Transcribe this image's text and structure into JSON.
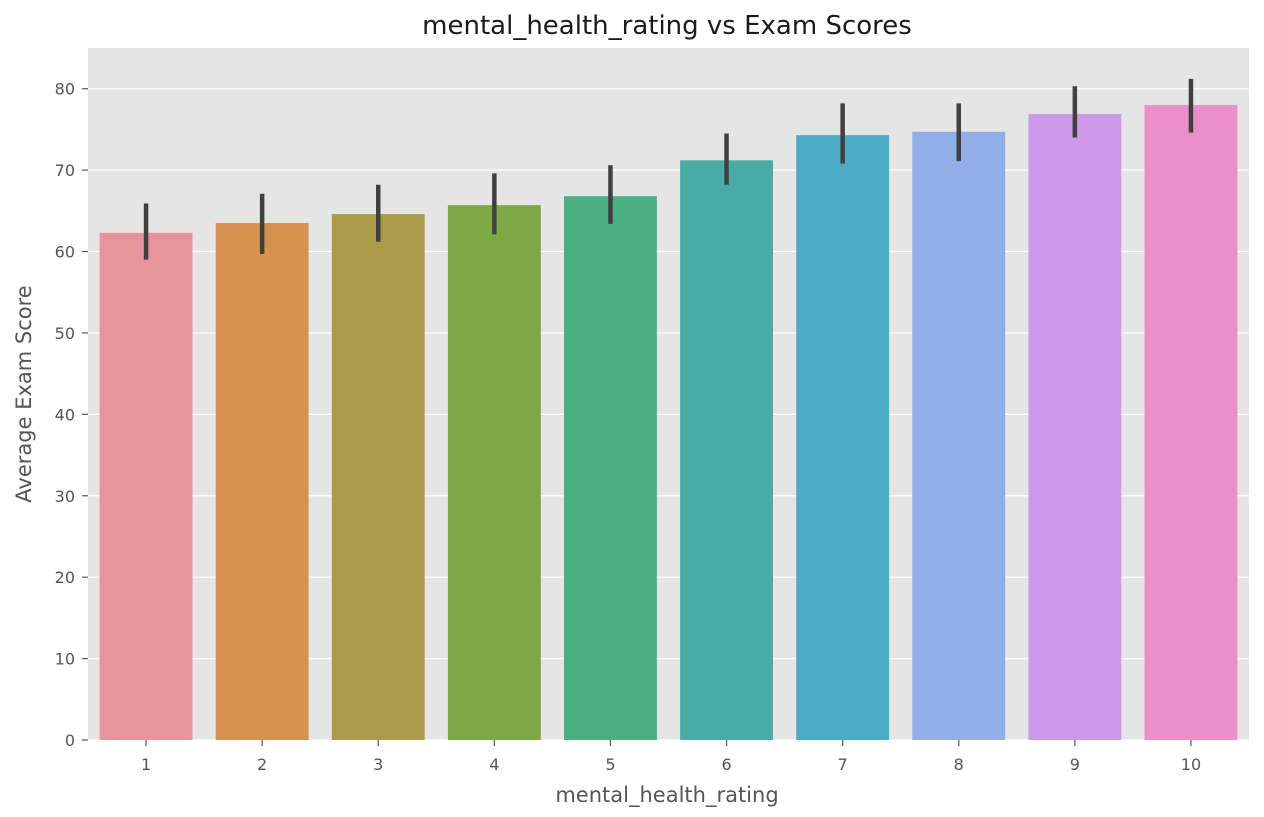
{
  "chart_data": {
    "type": "bar",
    "title": "mental_health_rating vs Exam Scores",
    "xlabel": "mental_health_rating",
    "ylabel": "Average Exam Score",
    "categories": [
      "1",
      "2",
      "3",
      "4",
      "5",
      "6",
      "7",
      "8",
      "9",
      "10"
    ],
    "values": [
      62.3,
      63.5,
      64.6,
      65.7,
      66.8,
      71.2,
      74.3,
      74.7,
      76.9,
      78.0
    ],
    "error_low": [
      59.0,
      59.7,
      61.2,
      62.1,
      63.4,
      68.2,
      70.8,
      71.1,
      74.0,
      74.6
    ],
    "error_high": [
      65.9,
      67.1,
      68.2,
      69.6,
      70.6,
      74.5,
      78.2,
      78.2,
      80.3,
      81.2
    ],
    "bar_colors": [
      "#e8949f",
      "#d6914e",
      "#a99b47",
      "#7ea846",
      "#4aaf83",
      "#4aaba6",
      "#4dabc5",
      "#91aee8",
      "#cc99e8",
      "#ea8fc8"
    ],
    "error_color": "#404040",
    "yticks": [
      0,
      10,
      20,
      30,
      40,
      50,
      60,
      70,
      80
    ],
    "ylim": [
      0,
      85
    ],
    "grid": true,
    "background": "#e5e5e5"
  }
}
